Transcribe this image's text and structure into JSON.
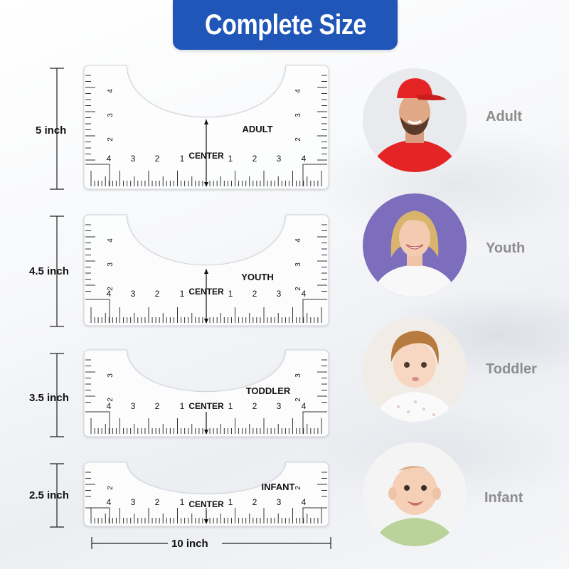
{
  "banner": {
    "title": "Complete Size"
  },
  "rulers": [
    {
      "size": "ADULT",
      "height_label": "5 inch",
      "center_label": "CENTER",
      "side_numbers": [
        "4",
        "3",
        "2"
      ],
      "bottom_numbers": [
        "4",
        "3",
        "2",
        "1",
        "1",
        "2",
        "3",
        "4"
      ]
    },
    {
      "size": "YOUTH",
      "height_label": "4.5 inch",
      "center_label": "CENTER",
      "side_numbers": [
        "4",
        "3",
        "2"
      ],
      "bottom_numbers": [
        "4",
        "3",
        "2",
        "1",
        "1",
        "2",
        "3",
        "4"
      ]
    },
    {
      "size": "TODDLER",
      "height_label": "3.5 inch",
      "center_label": "CENTER",
      "side_numbers": [
        "3",
        "2"
      ],
      "bottom_numbers": [
        "4",
        "3",
        "2",
        "1",
        "1",
        "2",
        "3",
        "4"
      ]
    },
    {
      "size": "INFANT",
      "height_label": "2.5 inch",
      "center_label": "CENTER",
      "side_numbers": [
        "2"
      ],
      "bottom_numbers": [
        "4",
        "3",
        "2",
        "1",
        "1",
        "2",
        "3",
        "4"
      ]
    }
  ],
  "width_label": "10 inch",
  "people": [
    {
      "label": "Adult",
      "icon": "adult-man-red-cap-icon"
    },
    {
      "label": "Youth",
      "icon": "smiling-woman-icon"
    },
    {
      "label": "Toddler",
      "icon": "curly-toddler-icon"
    },
    {
      "label": "Infant",
      "icon": "baby-icon"
    }
  ],
  "colors": {
    "banner": "#1f56b8",
    "label_gray": "#8d8d8d"
  }
}
